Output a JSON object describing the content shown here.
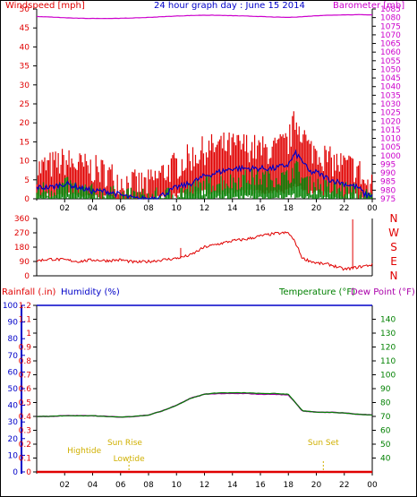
{
  "colors": {
    "windspeed": "#e00000",
    "windspeed_avg": "#0000c8",
    "wind_green": "#008000",
    "barometer": "#cc00cc",
    "direction": "#e00000",
    "rain": "#e00000",
    "humidity": "#0000c8",
    "temperature": "#008000",
    "dewpoint": "#aa00aa",
    "sun": "#d0b000",
    "axis": "#000000"
  },
  "header": {
    "left_label": "Windspeed [mph]",
    "title": "24 hour graph day : June 15 2014",
    "right_label": "Barometer [mb]"
  },
  "middle": {
    "compass_labels": [
      "N",
      "W",
      "S",
      "E",
      "N"
    ]
  },
  "bottom_header": {
    "rain_label": "Rainfall (.in)",
    "humidity_label": "Humidity (%)",
    "temp_label": "Temperature (°F)",
    "dew_label": "Dew Point (°F)"
  },
  "annotations": [
    {
      "text": "Hightide",
      "hour": 3.4,
      "row": 2
    },
    {
      "text": "Sun Rise",
      "hour": 6.3,
      "row": 1
    },
    {
      "text": "Lowtide",
      "hour": 6.6,
      "row": 3
    },
    {
      "text": "Sun Set",
      "hour": 20.5,
      "row": 1
    }
  ],
  "chart_data": [
    {
      "type": "line",
      "x_hours": [
        0,
        24
      ],
      "x_tick_labels": [
        "02",
        "04",
        "06",
        "08",
        "10",
        "12",
        "14",
        "16",
        "18",
        "20",
        "22",
        "00"
      ],
      "left_axis": {
        "ylim": [
          0,
          50
        ],
        "ticks": [
          0,
          5,
          10,
          15,
          20,
          25,
          30,
          35,
          40,
          45,
          50
        ]
      },
      "right_axis": {
        "ylim": [
          975,
          1085
        ],
        "ticks": [
          975,
          980,
          985,
          990,
          995,
          1000,
          1005,
          1010,
          1015,
          1020,
          1025,
          1030,
          1035,
          1040,
          1045,
          1050,
          1055,
          1060,
          1065,
          1070,
          1075,
          1080,
          1085
        ]
      },
      "series": [
        {
          "name": "Windspeed",
          "axis": "left",
          "style": "band",
          "x": [
            0,
            1,
            2,
            3,
            4,
            5,
            6,
            7,
            8,
            9,
            10,
            11,
            12,
            13,
            14,
            15,
            16,
            17,
            18,
            18.5,
            19,
            19.5,
            20,
            21,
            22,
            23,
            23.5,
            24
          ],
          "y": [
            7,
            8,
            9,
            8,
            7,
            6,
            4,
            3,
            3,
            6,
            8,
            10,
            12,
            13,
            13,
            13,
            12,
            12,
            14,
            20,
            17,
            12,
            12,
            9,
            8,
            7,
            3,
            2
          ]
        },
        {
          "name": "Average",
          "axis": "left",
          "style": "line",
          "x": [
            0,
            1,
            2,
            3,
            4,
            5,
            6,
            7,
            8,
            9,
            10,
            11,
            12,
            13,
            14,
            15,
            16,
            17,
            18,
            18.5,
            19,
            19.5,
            20,
            21,
            22,
            23,
            23.5,
            24
          ],
          "y": [
            3,
            3,
            4,
            3,
            2,
            2,
            1,
            0,
            0,
            1,
            3,
            4,
            6,
            7,
            8,
            8,
            8,
            8,
            9,
            12,
            10,
            7,
            7,
            5,
            4,
            3,
            1,
            1
          ]
        },
        {
          "name": "Gust",
          "axis": "left",
          "style": "band",
          "x": [
            0,
            1,
            2,
            3,
            4,
            5,
            6,
            7,
            8,
            9,
            10,
            11,
            12,
            13,
            14,
            15,
            16,
            17,
            18,
            18.5,
            19,
            19.5,
            20,
            21,
            22,
            23,
            23.5,
            24
          ],
          "y": [
            2,
            2,
            3,
            2,
            1,
            1,
            0,
            0,
            0,
            0,
            1,
            2,
            3,
            4,
            4,
            5,
            5,
            5,
            5,
            8,
            5,
            3,
            3,
            2,
            2,
            1,
            0,
            0
          ]
        },
        {
          "name": "Barometer",
          "axis": "right",
          "style": "line",
          "x": [
            0,
            1,
            2,
            3,
            4,
            5,
            6,
            7,
            8,
            9,
            10,
            11,
            12,
            13,
            14,
            15,
            16,
            17,
            18,
            19,
            20,
            21,
            22,
            23,
            24
          ],
          "y": [
            1080.6,
            1080.3,
            1079.9,
            1079.6,
            1079.5,
            1079.5,
            1079.6,
            1079.8,
            1080.1,
            1080.5,
            1080.9,
            1081.2,
            1081.4,
            1081.3,
            1081.1,
            1080.9,
            1080.6,
            1080.3,
            1080.1,
            1080.5,
            1081.1,
            1081.4,
            1081.6,
            1081.7,
            1081.6
          ]
        }
      ]
    },
    {
      "type": "line",
      "x_hours": [
        0,
        24
      ],
      "y_axis": {
        "ylim": [
          0,
          360
        ],
        "ticks": [
          0,
          90,
          180,
          270,
          360
        ]
      },
      "series": [
        {
          "name": "Wind direction",
          "x": [
            0,
            1,
            2,
            3,
            4,
            5,
            6,
            7,
            8,
            9,
            10,
            11,
            12,
            13,
            14,
            15,
            16,
            17,
            18,
            18.5,
            19,
            20,
            21,
            22,
            23,
            24
          ],
          "y": [
            95,
            105,
            100,
            90,
            100,
            95,
            100,
            85,
            90,
            100,
            110,
            130,
            180,
            200,
            220,
            230,
            250,
            265,
            270,
            210,
            110,
            80,
            70,
            40,
            55,
            70
          ]
        }
      ]
    },
    {
      "type": "line",
      "x_hours": [
        0,
        24
      ],
      "x_tick_labels": [
        "02",
        "04",
        "06",
        "08",
        "10",
        "12",
        "14",
        "16",
        "18",
        "20",
        "22",
        "00"
      ],
      "left_axis": {
        "ylim": [
          0,
          1.2
        ],
        "ticks": [
          0,
          0.1,
          0.2,
          0.3,
          0.4,
          0.5,
          0.6,
          0.7,
          0.8,
          0.9,
          1,
          1.1,
          1.2
        ]
      },
      "humidity_axis": {
        "ylim": [
          0,
          100
        ],
        "ticks": [
          0,
          10,
          20,
          30,
          40,
          50,
          60,
          70,
          80,
          90,
          100
        ]
      },
      "right_axis": {
        "ylim": [
          30,
          150
        ],
        "ticks": [
          40,
          50,
          60,
          70,
          80,
          90,
          100,
          110,
          120,
          130,
          140
        ]
      },
      "series": [
        {
          "name": "Rainfall",
          "axis": "left",
          "x": [
            0,
            24
          ],
          "y": [
            0,
            0
          ]
        },
        {
          "name": "Humidity",
          "axis": "humidity",
          "x": [
            0,
            24
          ],
          "y": [
            100,
            100
          ]
        },
        {
          "name": "Temperature",
          "axis": "right",
          "x": [
            0,
            1,
            2,
            3,
            4,
            5,
            6,
            7,
            8,
            9,
            10,
            11,
            12,
            13,
            14,
            15,
            16,
            17,
            18,
            18.5,
            19,
            20,
            21,
            22,
            23,
            24
          ],
          "y": [
            70,
            70,
            70.5,
            70.5,
            70.5,
            70,
            69.5,
            70,
            71,
            74,
            78,
            83,
            86,
            87,
            87,
            87,
            86.5,
            86.5,
            86,
            80,
            74,
            73,
            73,
            72.5,
            71.5,
            71
          ]
        },
        {
          "name": "Dew Point",
          "axis": "right",
          "x": [
            0,
            1,
            2,
            3,
            4,
            5,
            6,
            7,
            8,
            9,
            10,
            11,
            12,
            13,
            14,
            15,
            16,
            17,
            18,
            18.5,
            19,
            20,
            21,
            22,
            23,
            24
          ],
          "y": [
            70,
            70,
            70.5,
            70.5,
            70.5,
            70,
            69.5,
            70,
            71,
            74,
            78,
            83,
            86,
            86.5,
            86.5,
            86.5,
            86,
            86,
            85.5,
            80,
            74,
            73,
            73,
            72.5,
            71.5,
            71
          ]
        }
      ]
    }
  ]
}
